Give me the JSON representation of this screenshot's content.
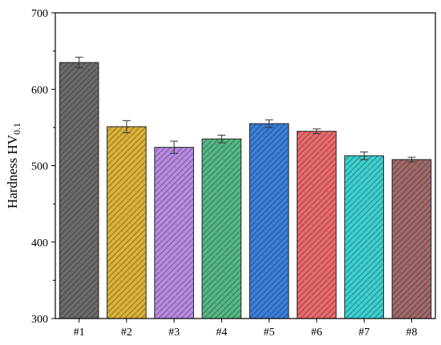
{
  "chart_data": {
    "type": "bar",
    "ylabel": "Hardness HV",
    "ylabel_subscript": "0.1",
    "xlabel": "",
    "ylim": [
      300,
      700
    ],
    "yticks": [
      300,
      400,
      500,
      600,
      700
    ],
    "grid": false,
    "categories": [
      "#1",
      "#2",
      "#3",
      "#4",
      "#5",
      "#6",
      "#7",
      "#8"
    ],
    "values": [
      635,
      551,
      524,
      535,
      555,
      545,
      513,
      508
    ],
    "errors": [
      7,
      8,
      8,
      5,
      5,
      3,
      5,
      3
    ],
    "colors": [
      "#6b6b6b",
      "#d9b23a",
      "#b88ae3",
      "#55b884",
      "#3b7fd9",
      "#e86a6a",
      "#3dcfcf",
      "#a06a6a"
    ],
    "pattern": "diagonal-hatch"
  }
}
